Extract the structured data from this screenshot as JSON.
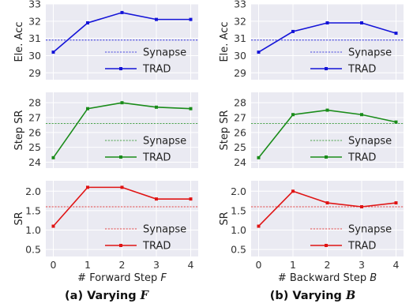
{
  "figure": {
    "captions": [
      "(a) Varying ",
      "(b) Varying "
    ],
    "caption_vars": [
      "F",
      "B"
    ]
  },
  "chart_data": [
    {
      "type": "line",
      "panel": "a-top",
      "ylabel": "Ele. Acc",
      "ylim": [
        28.6,
        33
      ],
      "yticks": [
        29,
        30,
        31,
        32,
        33
      ],
      "x": [
        0,
        1,
        2,
        3,
        4
      ],
      "grid": true,
      "legend": "lower-right",
      "color": "#1414d8",
      "series": [
        {
          "name": "TRAD",
          "values": [
            30.2,
            31.9,
            32.5,
            32.1,
            32.1
          ]
        }
      ],
      "baseline": {
        "name": "Synapse",
        "value": 30.9
      }
    },
    {
      "type": "line",
      "panel": "a-mid",
      "ylabel": "Step SR",
      "ylim": [
        23.6,
        28.7
      ],
      "yticks": [
        24,
        25,
        26,
        27,
        28
      ],
      "x": [
        0,
        1,
        2,
        3,
        4
      ],
      "grid": true,
      "legend": "lower-right",
      "color": "#1a8c1a",
      "series": [
        {
          "name": "TRAD",
          "values": [
            24.3,
            27.6,
            28.0,
            27.7,
            27.6
          ]
        }
      ],
      "baseline": {
        "name": "Synapse",
        "value": 26.6
      }
    },
    {
      "type": "line",
      "panel": "a-bottom",
      "ylabel": "SR",
      "ylim": [
        0.32,
        2.27
      ],
      "yticks": [
        0.5,
        1.0,
        1.5,
        2.0
      ],
      "x": [
        0,
        1,
        2,
        3,
        4
      ],
      "xticks": [
        "0",
        "1",
        "2",
        "3",
        "4"
      ],
      "xlabel": "# Forward Step ",
      "xlabel_var": "F",
      "grid": true,
      "legend": "lower-right",
      "color": "#e01414",
      "series": [
        {
          "name": "TRAD",
          "values": [
            1.1,
            2.1,
            2.1,
            1.8,
            1.8
          ]
        }
      ],
      "baseline": {
        "name": "Synapse",
        "value": 1.6
      }
    },
    {
      "type": "line",
      "panel": "b-top",
      "ylabel": "Ele. Acc",
      "ylim": [
        28.6,
        33
      ],
      "yticks": [
        29,
        30,
        31,
        32,
        33
      ],
      "x": [
        0,
        1,
        2,
        3,
        4
      ],
      "grid": true,
      "legend": "lower-right",
      "color": "#1414d8",
      "series": [
        {
          "name": "TRAD",
          "values": [
            30.2,
            31.4,
            31.9,
            31.9,
            31.3
          ]
        }
      ],
      "baseline": {
        "name": "Synapse",
        "value": 30.9
      }
    },
    {
      "type": "line",
      "panel": "b-mid",
      "ylabel": "Step SR",
      "ylim": [
        23.6,
        28.7
      ],
      "yticks": [
        24,
        25,
        26,
        27,
        28
      ],
      "x": [
        0,
        1,
        2,
        3,
        4
      ],
      "grid": true,
      "legend": "lower-right",
      "color": "#1a8c1a",
      "series": [
        {
          "name": "TRAD",
          "values": [
            24.3,
            27.2,
            27.5,
            27.2,
            26.7
          ]
        }
      ],
      "baseline": {
        "name": "Synapse",
        "value": 26.6
      }
    },
    {
      "type": "line",
      "panel": "b-bottom",
      "ylabel": "SR",
      "ylim": [
        0.32,
        2.27
      ],
      "yticks": [
        0.5,
        1.0,
        1.5,
        2.0
      ],
      "x": [
        0,
        1,
        2,
        3,
        4
      ],
      "xticks": [
        "0",
        "1",
        "2",
        "3",
        "4"
      ],
      "xlabel": "# Backward Step ",
      "xlabel_var": "B",
      "grid": true,
      "legend": "lower-right",
      "color": "#e01414",
      "series": [
        {
          "name": "TRAD",
          "values": [
            1.1,
            2.0,
            1.7,
            1.6,
            1.7
          ]
        }
      ],
      "baseline": {
        "name": "Synapse",
        "value": 1.6
      }
    }
  ]
}
